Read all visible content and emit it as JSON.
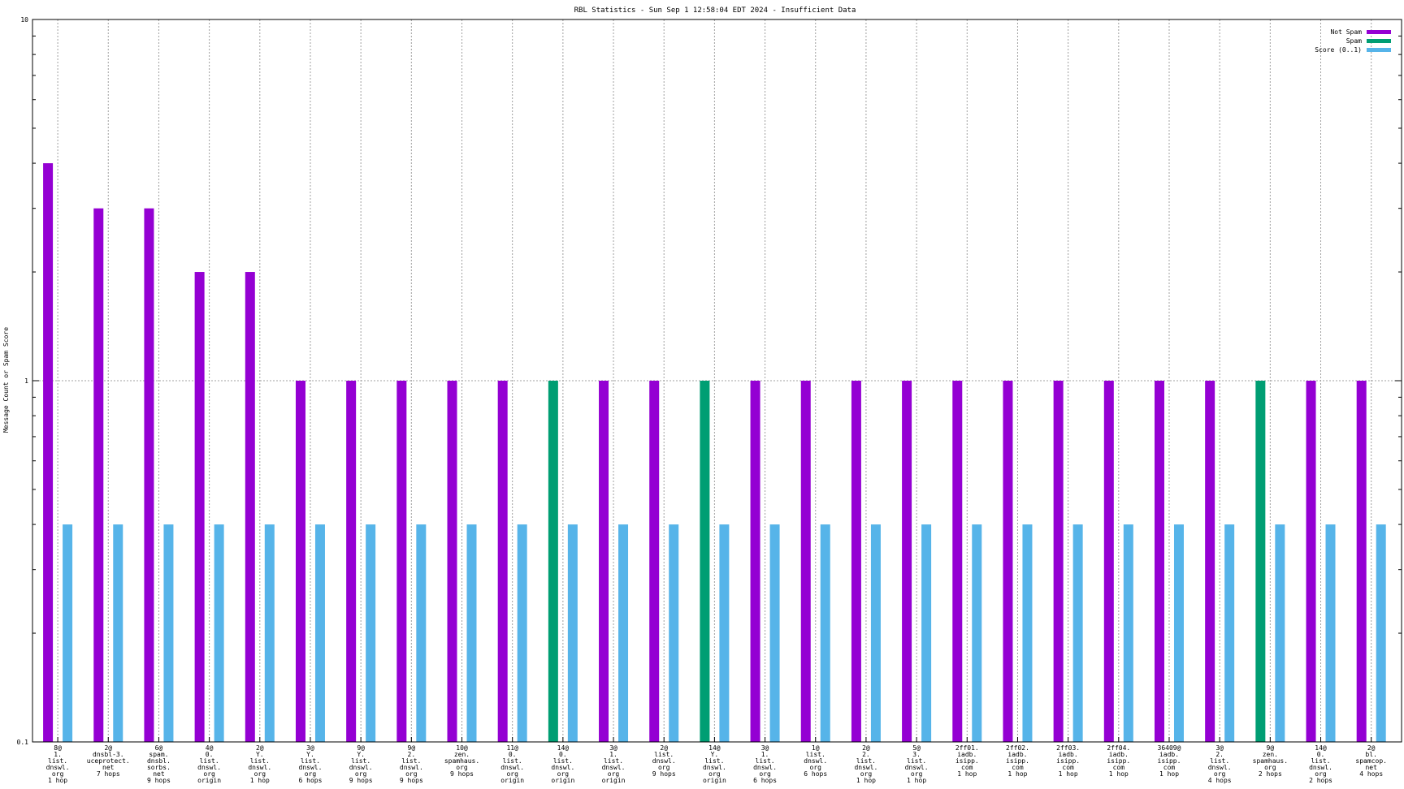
{
  "chart_data": {
    "type": "bar",
    "title": "RBL Statistics - Sun Sep  1 12:58:04 EDT 2024 - Insufficient Data",
    "xlabel": "",
    "ylabel": "Message Count or Spam Score",
    "yscale": "log",
    "ylim": [
      0.1,
      10
    ],
    "yticks": [
      "10",
      "1",
      "0.1"
    ],
    "grid": true,
    "legend_position": "top-right",
    "categories": [
      [
        "8@",
        "1.",
        "list.",
        "dnswl.",
        "org",
        "1 hop"
      ],
      [
        "2@",
        "dnsbl-3.",
        "uceprotect.",
        "net",
        "7 hops"
      ],
      [
        "6@",
        "spam.",
        "dnsbl.",
        "sorbs.",
        "net",
        "9 hops"
      ],
      [
        "4@",
        "0.",
        "list.",
        "dnswl.",
        "org",
        "origin"
      ],
      [
        "2@",
        "Y.",
        "list.",
        "dnswl.",
        "org",
        "1 hop"
      ],
      [
        "3@",
        "Y.",
        "list.",
        "dnswl.",
        "org",
        "6 hops"
      ],
      [
        "9@",
        "Y.",
        "list.",
        "dnswl.",
        "org",
        "9 hops"
      ],
      [
        "9@",
        "2.",
        "list.",
        "dnswl.",
        "org",
        "9 hops"
      ],
      [
        "10@",
        "zen.",
        "spamhaus.",
        "org",
        "9 hops"
      ],
      [
        "11@",
        "0.",
        "list.",
        "dnswl.",
        "org",
        "origin"
      ],
      [
        "14@",
        "0.",
        "list.",
        "dnswl.",
        "org",
        "origin"
      ],
      [
        "3@",
        "1.",
        "list.",
        "dnswl.",
        "org",
        "origin"
      ],
      [
        "2@",
        "list.",
        "dnswl.",
        "org",
        "9 hops"
      ],
      [
        "14@",
        "Y.",
        "list.",
        "dnswl.",
        "org",
        "origin"
      ],
      [
        "3@",
        "1.",
        "list.",
        "dnswl.",
        "org",
        "6 hops"
      ],
      [
        "1@",
        "list.",
        "dnswl.",
        "org",
        "6 hops"
      ],
      [
        "2@",
        "2.",
        "list.",
        "dnswl.",
        "org",
        "1 hop"
      ],
      [
        "5@",
        "3.",
        "list.",
        "dnswl.",
        "org",
        "1 hop"
      ],
      [
        "2ff01.",
        "iadb.",
        "isipp.",
        "com",
        "1 hop"
      ],
      [
        "2ff02.",
        "iadb.",
        "isipp.",
        "com",
        "1 hop"
      ],
      [
        "2ff03.",
        "iadb.",
        "isipp.",
        "com",
        "1 hop"
      ],
      [
        "2ff04.",
        "iadb.",
        "isipp.",
        "com",
        "1 hop"
      ],
      [
        "36409@",
        "iadb.",
        "isipp.",
        "com",
        "1 hop"
      ],
      [
        "3@",
        "2.",
        "list.",
        "dnswl.",
        "org",
        "4 hops"
      ],
      [
        "9@",
        "zen.",
        "spamhaus.",
        "org",
        "2 hops"
      ],
      [
        "14@",
        "0.",
        "list.",
        "dnswl.",
        "org",
        "2 hops"
      ],
      [
        "2@",
        "bl.",
        "spamcop.",
        "net",
        "4 hops"
      ]
    ],
    "series": [
      {
        "name": "Not Spam",
        "color": "#9400d3",
        "values": [
          4,
          3,
          3,
          2,
          2,
          1,
          1,
          1,
          1,
          1,
          null,
          1,
          1,
          null,
          1,
          1,
          1,
          1,
          1,
          1,
          1,
          1,
          1,
          1,
          null,
          1,
          1
        ]
      },
      {
        "name": "Spam",
        "color": "#009e73",
        "values": [
          null,
          null,
          null,
          null,
          null,
          null,
          null,
          null,
          null,
          null,
          1,
          null,
          null,
          1,
          null,
          null,
          null,
          null,
          null,
          null,
          null,
          null,
          null,
          null,
          1,
          null,
          null
        ]
      },
      {
        "name": "Score (0..1)",
        "color": "#56b4e9",
        "values": [
          0.4,
          0.4,
          0.4,
          0.4,
          0.4,
          0.4,
          0.4,
          0.4,
          0.4,
          0.4,
          0.4,
          0.4,
          0.4,
          0.4,
          0.4,
          0.4,
          0.4,
          0.4,
          0.4,
          0.4,
          0.4,
          0.4,
          0.4,
          0.4,
          0.4,
          0.4,
          0.4
        ]
      }
    ]
  }
}
